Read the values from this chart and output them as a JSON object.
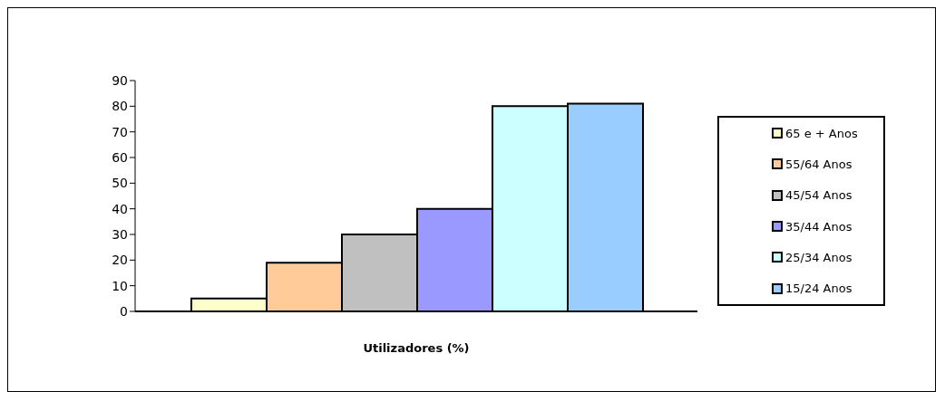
{
  "chart_data": {
    "type": "bar",
    "xlabel": "Utilizadores (%)",
    "categories": [
      null
    ],
    "series": [
      {
        "name": "65 e + Anos",
        "color": "#ffffcc",
        "values": [
          5
        ]
      },
      {
        "name": "55/64 Anos",
        "color": "#ffcc99",
        "values": [
          19
        ]
      },
      {
        "name": "45/54 Anos",
        "color": "#c0c0c0",
        "values": [
          30
        ]
      },
      {
        "name": "35/44 Anos",
        "color": "#9999ff",
        "values": [
          40
        ]
      },
      {
        "name": "25/34 Anos",
        "color": "#ccffff",
        "values": [
          80
        ]
      },
      {
        "name": "15/24 Anos",
        "color": "#99ccff",
        "values": [
          81
        ]
      }
    ],
    "ylim": [
      0,
      90
    ],
    "yticks": [
      0,
      10,
      20,
      30,
      40,
      50,
      60,
      70,
      80,
      90
    ],
    "grid": false,
    "legend": "right"
  }
}
